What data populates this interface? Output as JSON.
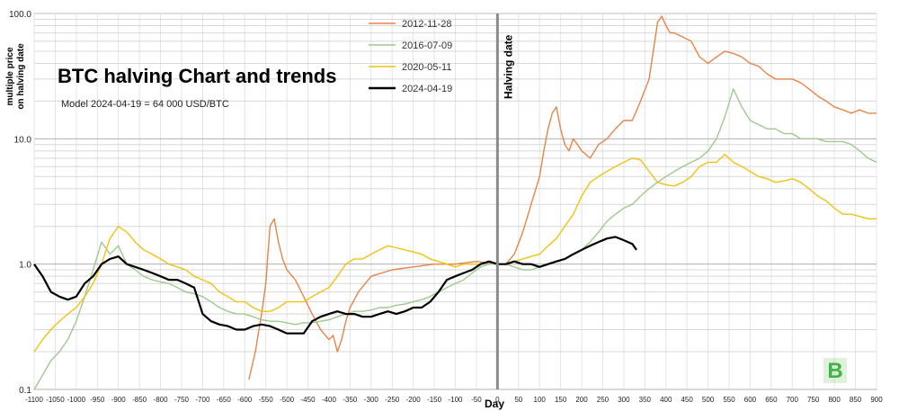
{
  "chart_data": {
    "type": "line",
    "title": "BTC halving Chart and trends",
    "subtitle": "Model 2024-04-19 = 64 000 USD/BTC",
    "xlabel": "Day",
    "ylabel": "multiple price on halving date",
    "y_scale": "log",
    "xlim": [
      -1100,
      900
    ],
    "ylim": [
      0.1,
      100
    ],
    "x_ticks": [
      -1100,
      -1050,
      -1000,
      -950,
      -900,
      -850,
      -800,
      -750,
      -700,
      -650,
      -600,
      -550,
      -500,
      -450,
      -400,
      -350,
      -300,
      -250,
      -200,
      -150,
      -100,
      -50,
      0,
      50,
      100,
      150,
      200,
      250,
      300,
      350,
      400,
      450,
      500,
      550,
      600,
      650,
      700,
      750,
      800,
      850,
      900
    ],
    "x_tick_labels": [
      "-1100",
      "-1050",
      "-1000",
      "-950",
      "-900",
      "-850",
      "-800",
      "-750",
      "-700",
      "-650",
      "-600",
      "-550",
      "-500",
      "-450",
      "-400",
      "-350",
      "-300",
      "-250",
      "-200",
      "-150",
      "-100",
      "-50",
      "0",
      "50",
      "100",
      "150",
      "200",
      "250",
      "300",
      "350",
      "400",
      "450",
      "500",
      "550",
      "600",
      "650",
      "700",
      "750",
      "800",
      "850",
      "900"
    ],
    "y_ticks": [
      0.1,
      1,
      10,
      100
    ],
    "y_tick_labels": [
      "0.1",
      "1.0",
      "10.0",
      "100.0"
    ],
    "vertical_marker": {
      "x": 0,
      "label": "Halving date"
    },
    "grid": true,
    "legend_position": "top-center",
    "series": [
      {
        "name": "2012-11-28",
        "color": "#E8844A",
        "x": [
          -590,
          -575,
          -560,
          -550,
          -545,
          -540,
          -530,
          -520,
          -510,
          -500,
          -480,
          -460,
          -440,
          -420,
          -400,
          -390,
          -380,
          -370,
          -360,
          -350,
          -330,
          -300,
          -250,
          -200,
          -150,
          -100,
          -50,
          0,
          20,
          40,
          60,
          80,
          100,
          110,
          120,
          130,
          140,
          150,
          160,
          170,
          180,
          190,
          200,
          220,
          240,
          260,
          280,
          300,
          320,
          340,
          360,
          370,
          380,
          390,
          400,
          410,
          420,
          440,
          460,
          480,
          500,
          520,
          540,
          560,
          580,
          600,
          620,
          640,
          660,
          680,
          700,
          720,
          740,
          760,
          780,
          800,
          820,
          840,
          860,
          880,
          900
        ],
        "y": [
          0.12,
          0.2,
          0.4,
          0.7,
          1.2,
          2.0,
          2.3,
          1.5,
          1.1,
          0.9,
          0.75,
          0.55,
          0.4,
          0.3,
          0.25,
          0.27,
          0.2,
          0.25,
          0.35,
          0.45,
          0.6,
          0.8,
          0.9,
          0.95,
          1.0,
          1.0,
          1.05,
          1.0,
          1.0,
          1.2,
          1.8,
          3.0,
          5.0,
          8.0,
          12,
          16,
          18,
          12,
          9,
          8,
          10,
          9,
          8,
          7,
          9,
          10,
          12,
          14,
          14,
          20,
          30,
          50,
          85,
          95,
          80,
          70,
          70,
          65,
          60,
          45,
          40,
          45,
          50,
          48,
          45,
          40,
          38,
          33,
          30,
          30,
          30,
          28,
          25,
          22,
          20,
          18,
          17,
          16,
          17,
          16,
          16
        ]
      },
      {
        "name": "2016-07-09",
        "color": "#9FC98E",
        "x": [
          -1100,
          -1080,
          -1060,
          -1040,
          -1020,
          -1000,
          -980,
          -960,
          -940,
          -920,
          -900,
          -880,
          -860,
          -840,
          -820,
          -800,
          -780,
          -760,
          -740,
          -720,
          -700,
          -680,
          -660,
          -640,
          -620,
          -600,
          -580,
          -560,
          -540,
          -520,
          -500,
          -480,
          -460,
          -440,
          -420,
          -400,
          -380,
          -360,
          -340,
          -320,
          -300,
          -280,
          -260,
          -240,
          -220,
          -200,
          -180,
          -160,
          -140,
          -120,
          -100,
          -80,
          -60,
          -40,
          -20,
          0,
          20,
          40,
          60,
          80,
          100,
          120,
          140,
          160,
          180,
          200,
          220,
          240,
          260,
          280,
          300,
          320,
          340,
          360,
          380,
          400,
          420,
          440,
          460,
          480,
          500,
          520,
          540,
          560,
          580,
          600,
          620,
          640,
          660,
          680,
          700,
          720,
          740,
          760,
          780,
          800,
          820,
          840,
          860,
          880,
          900
        ],
        "y": [
          0.1,
          0.13,
          0.17,
          0.2,
          0.25,
          0.35,
          0.55,
          0.9,
          1.5,
          1.2,
          1.4,
          1.0,
          0.9,
          0.8,
          0.75,
          0.72,
          0.7,
          0.65,
          0.6,
          0.58,
          0.55,
          0.5,
          0.45,
          0.42,
          0.4,
          0.4,
          0.38,
          0.36,
          0.35,
          0.35,
          0.34,
          0.33,
          0.34,
          0.34,
          0.35,
          0.36,
          0.38,
          0.4,
          0.42,
          0.42,
          0.43,
          0.45,
          0.45,
          0.47,
          0.48,
          0.5,
          0.52,
          0.55,
          0.6,
          0.65,
          0.7,
          0.75,
          0.85,
          0.95,
          1.0,
          1.0,
          1.0,
          0.95,
          0.9,
          0.9,
          0.95,
          1.0,
          1.05,
          1.1,
          1.2,
          1.3,
          1.5,
          1.8,
          2.2,
          2.5,
          2.8,
          3.0,
          3.5,
          4.0,
          4.5,
          5.0,
          5.5,
          6.0,
          6.5,
          7.0,
          8.0,
          10,
          15,
          25,
          18,
          14,
          13,
          12,
          12,
          11,
          11,
          10,
          10,
          10,
          9.5,
          9.5,
          9.5,
          9.0,
          8.0,
          7.0,
          6.5
        ]
      },
      {
        "name": "2020-05-11",
        "color": "#F2C211",
        "x": [
          -1100,
          -1080,
          -1060,
          -1040,
          -1020,
          -1000,
          -980,
          -960,
          -940,
          -920,
          -900,
          -880,
          -860,
          -840,
          -820,
          -800,
          -780,
          -760,
          -740,
          -720,
          -700,
          -680,
          -660,
          -640,
          -620,
          -600,
          -580,
          -560,
          -540,
          -520,
          -500,
          -480,
          -460,
          -440,
          -420,
          -400,
          -380,
          -360,
          -340,
          -320,
          -300,
          -280,
          -260,
          -240,
          -220,
          -200,
          -180,
          -160,
          -140,
          -120,
          -100,
          -80,
          -60,
          -40,
          -20,
          0,
          20,
          40,
          60,
          80,
          100,
          120,
          140,
          160,
          180,
          200,
          220,
          240,
          260,
          280,
          300,
          320,
          340,
          360,
          380,
          400,
          420,
          440,
          460,
          480,
          500,
          520,
          540,
          560,
          580,
          600,
          620,
          640,
          660,
          680,
          700,
          720,
          740,
          760,
          780,
          800,
          820,
          840,
          860,
          880,
          900
        ],
        "y": [
          0.2,
          0.25,
          0.3,
          0.35,
          0.4,
          0.45,
          0.55,
          0.7,
          1.0,
          1.6,
          2.0,
          1.8,
          1.5,
          1.3,
          1.2,
          1.1,
          1.0,
          0.95,
          0.9,
          0.8,
          0.75,
          0.7,
          0.6,
          0.55,
          0.5,
          0.5,
          0.45,
          0.42,
          0.42,
          0.45,
          0.5,
          0.5,
          0.5,
          0.55,
          0.6,
          0.65,
          0.8,
          1.0,
          1.1,
          1.1,
          1.2,
          1.3,
          1.4,
          1.35,
          1.3,
          1.25,
          1.2,
          1.1,
          1.05,
          1.0,
          0.95,
          1.0,
          1.0,
          1.0,
          1.05,
          1.0,
          1.0,
          1.05,
          1.1,
          1.15,
          1.2,
          1.4,
          1.6,
          2.0,
          2.5,
          3.5,
          4.5,
          5.0,
          5.5,
          6.0,
          6.5,
          7.0,
          6.8,
          5.5,
          4.5,
          4.3,
          4.2,
          4.5,
          5.0,
          6.0,
          6.5,
          6.5,
          7.5,
          6.5,
          6.0,
          5.5,
          5.0,
          4.8,
          4.5,
          4.6,
          4.8,
          4.5,
          4.0,
          3.5,
          3.2,
          2.8,
          2.5,
          2.5,
          2.4,
          2.3,
          2.3
        ]
      },
      {
        "name": "2024-04-19",
        "color": "#000000",
        "x": [
          -1100,
          -1080,
          -1060,
          -1040,
          -1020,
          -1000,
          -980,
          -960,
          -940,
          -920,
          -900,
          -880,
          -860,
          -840,
          -820,
          -800,
          -780,
          -760,
          -740,
          -720,
          -700,
          -680,
          -660,
          -640,
          -620,
          -600,
          -580,
          -560,
          -540,
          -520,
          -500,
          -480,
          -460,
          -440,
          -420,
          -400,
          -380,
          -360,
          -340,
          -320,
          -300,
          -280,
          -260,
          -240,
          -220,
          -200,
          -180,
          -160,
          -140,
          -120,
          -100,
          -80,
          -60,
          -40,
          -20,
          0,
          20,
          40,
          60,
          80,
          100,
          120,
          140,
          160,
          180,
          200,
          220,
          240,
          260,
          280,
          300,
          320,
          330
        ],
        "y": [
          1.0,
          0.8,
          0.6,
          0.55,
          0.52,
          0.55,
          0.7,
          0.8,
          1.0,
          1.1,
          1.15,
          1.0,
          0.95,
          0.9,
          0.85,
          0.8,
          0.75,
          0.75,
          0.7,
          0.65,
          0.4,
          0.35,
          0.33,
          0.32,
          0.3,
          0.3,
          0.32,
          0.33,
          0.32,
          0.3,
          0.28,
          0.28,
          0.28,
          0.35,
          0.38,
          0.4,
          0.42,
          0.4,
          0.4,
          0.38,
          0.38,
          0.4,
          0.42,
          0.4,
          0.42,
          0.45,
          0.45,
          0.5,
          0.6,
          0.75,
          0.8,
          0.85,
          0.9,
          1.0,
          1.05,
          1.0,
          1.0,
          1.05,
          1.0,
          1.0,
          0.95,
          1.0,
          1.05,
          1.1,
          1.2,
          1.3,
          1.4,
          1.5,
          1.6,
          1.65,
          1.55,
          1.45,
          1.3
        ]
      }
    ]
  },
  "watermark": {
    "letter": "B",
    "icon": "bitcoin-logo-icon",
    "color": "#43B245"
  }
}
